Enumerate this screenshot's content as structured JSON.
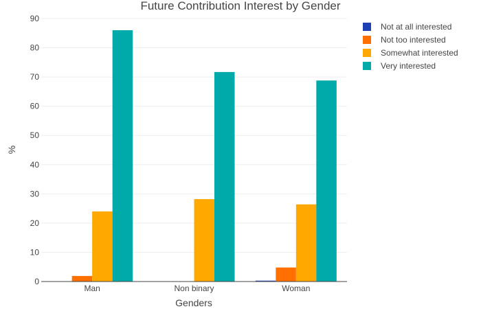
{
  "chart_data": {
    "type": "bar",
    "title": "Future Contribution Interest by Gender",
    "xlabel": "Genders",
    "ylabel": "%",
    "categories": [
      "Man",
      "Non binary",
      "Woman"
    ],
    "ylim": [
      0,
      90
    ],
    "yticks": [
      0,
      10,
      20,
      30,
      40,
      50,
      60,
      70,
      80,
      90
    ],
    "grid": true,
    "legend_position": "top-right",
    "series": [
      {
        "name": "Not at all interested",
        "color": "#1f3fb4",
        "values": [
          0,
          0,
          0.3
        ]
      },
      {
        "name": "Not too interested",
        "color": "#ff7000",
        "values": [
          1.9,
          0,
          4.8
        ]
      },
      {
        "name": "Somewhat interested",
        "color": "#ffa800",
        "values": [
          24.0,
          28.2,
          26.4
        ]
      },
      {
        "name": "Very interested",
        "color": "#00aaaa",
        "values": [
          86.0,
          71.7,
          68.8
        ]
      }
    ]
  }
}
